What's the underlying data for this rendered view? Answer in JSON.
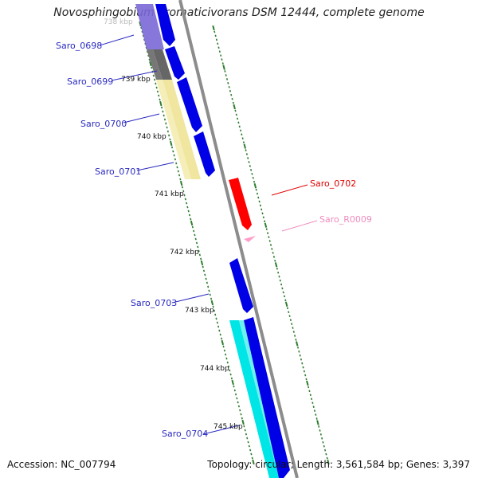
{
  "title": "Novosphingobium aromaticivorans DSM 12444, complete genome",
  "footer": {
    "accession_label": "Accession:",
    "accession": "NC_007794",
    "topology_label": "Topology:",
    "topology": "circular;",
    "length_label": "Length:",
    "length": "3,561,584 bp;",
    "genes_label": "Genes:",
    "genes": "3,397"
  },
  "colors": {
    "backbone": "#8c8c8c",
    "tick": "#2e7d2e",
    "forward_cds": "#0000e6",
    "reverse_cds": "#ff0000",
    "rna": "#ff9ec8"
  },
  "ruler": [
    {
      "label": "738 kbp",
      "faded": true
    },
    {
      "label": "739 kbp"
    },
    {
      "label": "740 kbp"
    },
    {
      "label": "741 kbp"
    },
    {
      "label": "742 kbp"
    },
    {
      "label": "743 kbp"
    },
    {
      "label": "744 kbp"
    },
    {
      "label": "745 kbp"
    }
  ],
  "genes": [
    {
      "label": "Saro_0698",
      "color": "#2a2ac0"
    },
    {
      "label": "Saro_0699",
      "color": "#2a2ac0"
    },
    {
      "label": "Saro_0700",
      "color": "#2a2ac0"
    },
    {
      "label": "Saro_0701",
      "color": "#2a2ac0"
    },
    {
      "label": "Saro_0702",
      "color": "#e00000"
    },
    {
      "label": "Saro_R0009",
      "color": "#f08cbe"
    },
    {
      "label": "Saro_0703",
      "color": "#2a2ac0"
    },
    {
      "label": "Saro_0704",
      "color": "#2a2ac0"
    }
  ]
}
